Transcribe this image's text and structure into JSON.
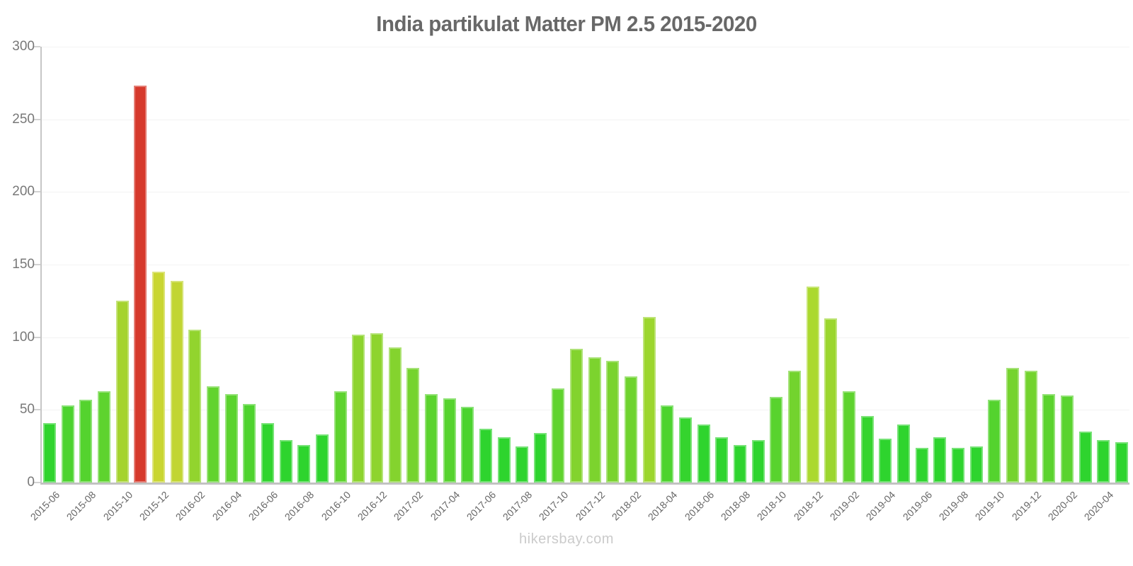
{
  "page": {
    "background": "#ffffff",
    "watermark": "hikersbay.com"
  },
  "chart_data": {
    "type": "bar",
    "title": "India partikulat Matter PM 2.5 2015-2020",
    "xlabel": "",
    "ylabel": "",
    "ylim": [
      0,
      300
    ],
    "yticks": [
      0,
      50,
      100,
      150,
      200,
      250,
      300
    ],
    "grid": true,
    "legend": "none",
    "x_label_every": 2,
    "categories": [
      "2015-06",
      "2015-07",
      "2015-08",
      "2015-09",
      "2015-10",
      "2015-11",
      "2015-12",
      "2016-01",
      "2016-02",
      "2016-03",
      "2016-04",
      "2016-05",
      "2016-06",
      "2016-07",
      "2016-08",
      "2016-09",
      "2016-10",
      "2016-11",
      "2016-12",
      "2017-01",
      "2017-02",
      "2017-03",
      "2017-04",
      "2017-05",
      "2017-06",
      "2017-07",
      "2017-08",
      "2017-09",
      "2017-10",
      "2017-11",
      "2017-12",
      "2018-01",
      "2018-02",
      "2018-03",
      "2018-04",
      "2018-05",
      "2018-06",
      "2018-07",
      "2018-08",
      "2018-09",
      "2018-10",
      "2018-11",
      "2018-12",
      "2019-01",
      "2019-02",
      "2019-03",
      "2019-04",
      "2019-05",
      "2019-06",
      "2019-07",
      "2019-08",
      "2019-09",
      "2019-10",
      "2019-11",
      "2019-12",
      "2020-01",
      "2020-02",
      "2020-03",
      "2020-04",
      "2020-05"
    ],
    "values": [
      41,
      53,
      57,
      63,
      125,
      273,
      145,
      139,
      105,
      66,
      61,
      54,
      41,
      29,
      26,
      33,
      63,
      102,
      103,
      93,
      79,
      61,
      58,
      52,
      37,
      31,
      25,
      34,
      65,
      92,
      86,
      84,
      73,
      114,
      53,
      45,
      40,
      31,
      26,
      29,
      59,
      77,
      135,
      113,
      63,
      46,
      30,
      40,
      24,
      31,
      24,
      25,
      57,
      79,
      77,
      61,
      60,
      35,
      29,
      28
    ],
    "colors": [
      "#30d42e",
      "#4cd32e",
      "#54d32e",
      "#5ed32e",
      "#a5d32e",
      "#d6392c",
      "#c9d632",
      "#c1d532",
      "#92d42e",
      "#62d32e",
      "#5bd32e",
      "#4ed32e",
      "#30d42e",
      "#2ed42e",
      "#2ed42e",
      "#2ed42e",
      "#5ed32e",
      "#8dd42e",
      "#8ed42e",
      "#84d32e",
      "#75d32e",
      "#5bd32e",
      "#56d32e",
      "#4bd32e",
      "#2ed42e",
      "#2ed42e",
      "#2ed42e",
      "#2ed42e",
      "#60d32e",
      "#83d32e",
      "#7cd32e",
      "#7ad32e",
      "#6ed32e",
      "#9cd62e",
      "#4cd32e",
      "#35d42e",
      "#2fd42e",
      "#2ed42e",
      "#2ed42e",
      "#2ed42e",
      "#58d32e",
      "#73d32e",
      "#abd92e",
      "#9bd62e",
      "#5ed32e",
      "#36d42e",
      "#2ed42e",
      "#2fd42e",
      "#2ed42e",
      "#2ed42e",
      "#2ed42e",
      "#2ed42e",
      "#54d32e",
      "#75d32e",
      "#73d32e",
      "#5bd32e",
      "#59d32e",
      "#2ed42e",
      "#2ed42e",
      "#2ed42e"
    ],
    "highlight_color": "#d6392c",
    "title_color": "#686868",
    "axis_color": "#c6c6c6",
    "grid_color": "#f3f3f3",
    "ytick_label_color": "#787878",
    "xtick_label_color": "#666666",
    "watermark": "hikersbay.com",
    "watermark_color": "#cbcbcb"
  }
}
